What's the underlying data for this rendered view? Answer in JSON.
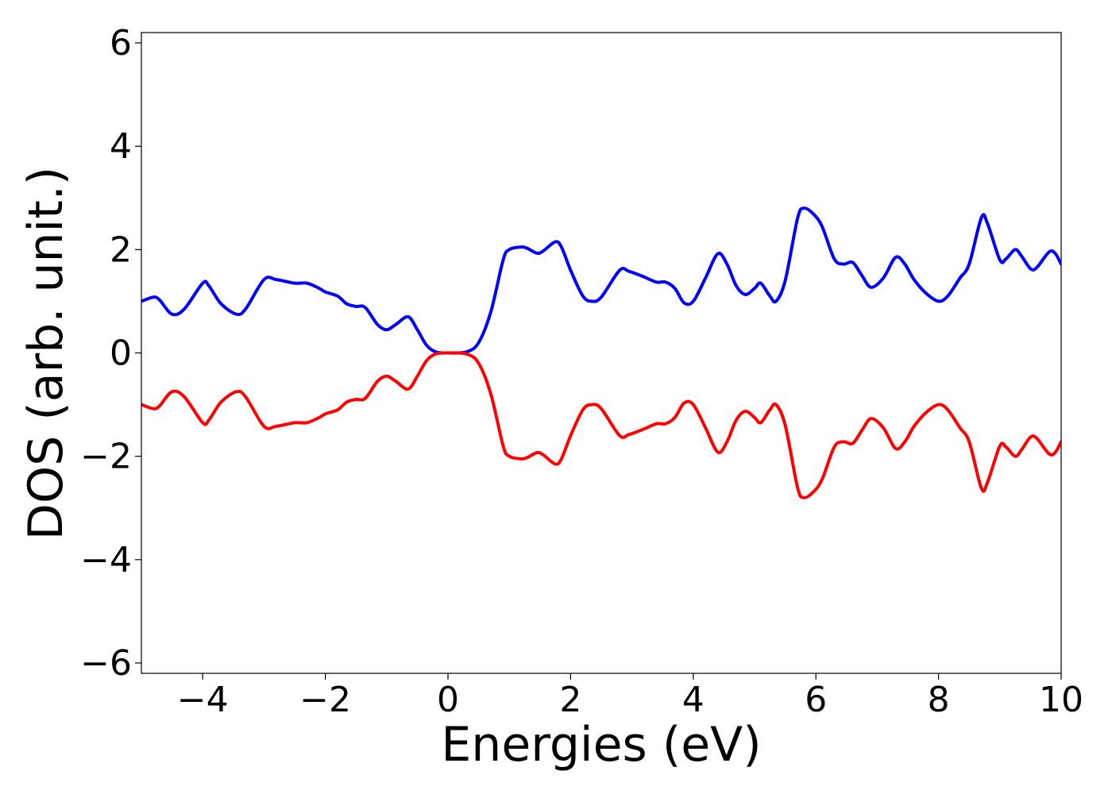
{
  "chart_data": {
    "type": "line",
    "title": "",
    "xlabel": "Energies (eV)",
    "ylabel": "DOS (arb. unit.)",
    "xlim": [
      -5,
      10
    ],
    "ylim": [
      -6.2,
      6.2
    ],
    "grid": false,
    "x_ticks": [
      -4,
      -2,
      0,
      2,
      4,
      6,
      8,
      10
    ],
    "x_tick_labels": [
      "−4",
      "−2",
      "0",
      "2",
      "4",
      "6",
      "8",
      "10"
    ],
    "y_ticks": [
      -6,
      -4,
      -2,
      0,
      2,
      4,
      6
    ],
    "y_tick_labels": [
      "−6",
      "−4",
      "−2",
      "0",
      "2",
      "4",
      "6"
    ],
    "series": [
      {
        "color": "#0000ff",
        "points": [
          [
            -5.0,
            1.0
          ],
          [
            -4.8,
            1.08
          ],
          [
            -4.7,
            1.02
          ],
          [
            -4.5,
            0.75
          ],
          [
            -4.3,
            0.85
          ],
          [
            -4.0,
            1.35
          ],
          [
            -3.9,
            1.3
          ],
          [
            -3.7,
            0.95
          ],
          [
            -3.45,
            0.75
          ],
          [
            -3.3,
            0.85
          ],
          [
            -3.0,
            1.42
          ],
          [
            -2.8,
            1.42
          ],
          [
            -2.5,
            1.35
          ],
          [
            -2.3,
            1.35
          ],
          [
            -2.1,
            1.25
          ],
          [
            -2.0,
            1.18
          ],
          [
            -1.8,
            1.1
          ],
          [
            -1.65,
            0.95
          ],
          [
            -1.5,
            0.9
          ],
          [
            -1.35,
            0.88
          ],
          [
            -1.15,
            0.55
          ],
          [
            -1.0,
            0.45
          ],
          [
            -0.85,
            0.55
          ],
          [
            -0.65,
            0.7
          ],
          [
            -0.5,
            0.45
          ],
          [
            -0.35,
            0.15
          ],
          [
            -0.2,
            0.02
          ],
          [
            0.0,
            0.0
          ],
          [
            0.3,
            0.02
          ],
          [
            0.5,
            0.2
          ],
          [
            0.7,
            0.8
          ],
          [
            0.9,
            1.8
          ],
          [
            1.0,
            2.0
          ],
          [
            1.2,
            2.05
          ],
          [
            1.3,
            2.02
          ],
          [
            1.45,
            1.93
          ],
          [
            1.55,
            1.97
          ],
          [
            1.75,
            2.15
          ],
          [
            1.85,
            2.05
          ],
          [
            2.0,
            1.6
          ],
          [
            2.2,
            1.1
          ],
          [
            2.35,
            1.0
          ],
          [
            2.5,
            1.08
          ],
          [
            2.8,
            1.6
          ],
          [
            2.95,
            1.58
          ],
          [
            3.2,
            1.47
          ],
          [
            3.4,
            1.37
          ],
          [
            3.55,
            1.37
          ],
          [
            3.7,
            1.25
          ],
          [
            3.85,
            0.97
          ],
          [
            4.0,
            1.0
          ],
          [
            4.2,
            1.45
          ],
          [
            4.4,
            1.92
          ],
          [
            4.55,
            1.72
          ],
          [
            4.7,
            1.3
          ],
          [
            4.85,
            1.13
          ],
          [
            5.0,
            1.25
          ],
          [
            5.1,
            1.35
          ],
          [
            5.25,
            1.1
          ],
          [
            5.35,
            1.0
          ],
          [
            5.5,
            1.4
          ],
          [
            5.7,
            2.6
          ],
          [
            5.8,
            2.8
          ],
          [
            5.95,
            2.7
          ],
          [
            6.1,
            2.45
          ],
          [
            6.3,
            1.82
          ],
          [
            6.45,
            1.72
          ],
          [
            6.6,
            1.75
          ],
          [
            6.75,
            1.5
          ],
          [
            6.9,
            1.27
          ],
          [
            7.1,
            1.45
          ],
          [
            7.3,
            1.85
          ],
          [
            7.45,
            1.72
          ],
          [
            7.6,
            1.42
          ],
          [
            7.8,
            1.15
          ],
          [
            8.0,
            1.0
          ],
          [
            8.15,
            1.1
          ],
          [
            8.35,
            1.45
          ],
          [
            8.5,
            1.72
          ],
          [
            8.7,
            2.62
          ],
          [
            8.8,
            2.5
          ],
          [
            9.0,
            1.8
          ],
          [
            9.1,
            1.82
          ],
          [
            9.25,
            2.0
          ],
          [
            9.35,
            1.88
          ],
          [
            9.5,
            1.63
          ],
          [
            9.6,
            1.65
          ],
          [
            9.8,
            1.95
          ],
          [
            9.9,
            1.93
          ],
          [
            10.0,
            1.72
          ]
        ]
      },
      {
        "color": "#ff0000",
        "points": [
          [
            -5.0,
            -1.0
          ],
          [
            -4.8,
            -1.08
          ],
          [
            -4.7,
            -1.02
          ],
          [
            -4.5,
            -0.75
          ],
          [
            -4.3,
            -0.85
          ],
          [
            -4.0,
            -1.35
          ],
          [
            -3.9,
            -1.3
          ],
          [
            -3.7,
            -0.95
          ],
          [
            -3.45,
            -0.75
          ],
          [
            -3.3,
            -0.85
          ],
          [
            -3.0,
            -1.42
          ],
          [
            -2.8,
            -1.42
          ],
          [
            -2.5,
            -1.35
          ],
          [
            -2.3,
            -1.35
          ],
          [
            -2.1,
            -1.25
          ],
          [
            -2.0,
            -1.18
          ],
          [
            -1.8,
            -1.1
          ],
          [
            -1.65,
            -0.95
          ],
          [
            -1.5,
            -0.9
          ],
          [
            -1.35,
            -0.88
          ],
          [
            -1.15,
            -0.55
          ],
          [
            -1.0,
            -0.45
          ],
          [
            -0.85,
            -0.55
          ],
          [
            -0.65,
            -0.7
          ],
          [
            -0.5,
            -0.45
          ],
          [
            -0.35,
            -0.15
          ],
          [
            -0.2,
            -0.02
          ],
          [
            0.0,
            0.0
          ],
          [
            0.3,
            -0.02
          ],
          [
            0.5,
            -0.2
          ],
          [
            0.7,
            -0.8
          ],
          [
            0.9,
            -1.8
          ],
          [
            1.0,
            -2.0
          ],
          [
            1.2,
            -2.05
          ],
          [
            1.3,
            -2.02
          ],
          [
            1.45,
            -1.93
          ],
          [
            1.55,
            -1.97
          ],
          [
            1.75,
            -2.15
          ],
          [
            1.85,
            -2.05
          ],
          [
            2.0,
            -1.6
          ],
          [
            2.2,
            -1.1
          ],
          [
            2.35,
            -1.0
          ],
          [
            2.5,
            -1.08
          ],
          [
            2.8,
            -1.6
          ],
          [
            2.95,
            -1.58
          ],
          [
            3.2,
            -1.47
          ],
          [
            3.4,
            -1.37
          ],
          [
            3.55,
            -1.37
          ],
          [
            3.7,
            -1.25
          ],
          [
            3.85,
            -0.97
          ],
          [
            4.0,
            -1.0
          ],
          [
            4.2,
            -1.45
          ],
          [
            4.4,
            -1.92
          ],
          [
            4.55,
            -1.72
          ],
          [
            4.7,
            -1.3
          ],
          [
            4.85,
            -1.13
          ],
          [
            5.0,
            -1.25
          ],
          [
            5.1,
            -1.35
          ],
          [
            5.25,
            -1.1
          ],
          [
            5.35,
            -1.0
          ],
          [
            5.5,
            -1.4
          ],
          [
            5.7,
            -2.6
          ],
          [
            5.8,
            -2.8
          ],
          [
            5.95,
            -2.7
          ],
          [
            6.1,
            -2.45
          ],
          [
            6.3,
            -1.82
          ],
          [
            6.45,
            -1.72
          ],
          [
            6.6,
            -1.75
          ],
          [
            6.75,
            -1.5
          ],
          [
            6.9,
            -1.27
          ],
          [
            7.1,
            -1.45
          ],
          [
            7.3,
            -1.85
          ],
          [
            7.45,
            -1.72
          ],
          [
            7.6,
            -1.42
          ],
          [
            7.8,
            -1.15
          ],
          [
            8.0,
            -1.0
          ],
          [
            8.15,
            -1.1
          ],
          [
            8.35,
            -1.45
          ],
          [
            8.5,
            -1.72
          ],
          [
            8.7,
            -2.62
          ],
          [
            8.8,
            -2.5
          ],
          [
            9.0,
            -1.8
          ],
          [
            9.1,
            -1.82
          ],
          [
            9.25,
            -2.0
          ],
          [
            9.35,
            -1.88
          ],
          [
            9.5,
            -1.63
          ],
          [
            9.6,
            -1.65
          ],
          [
            9.8,
            -1.95
          ],
          [
            9.9,
            -1.93
          ],
          [
            10.0,
            -1.72
          ]
        ]
      }
    ]
  }
}
